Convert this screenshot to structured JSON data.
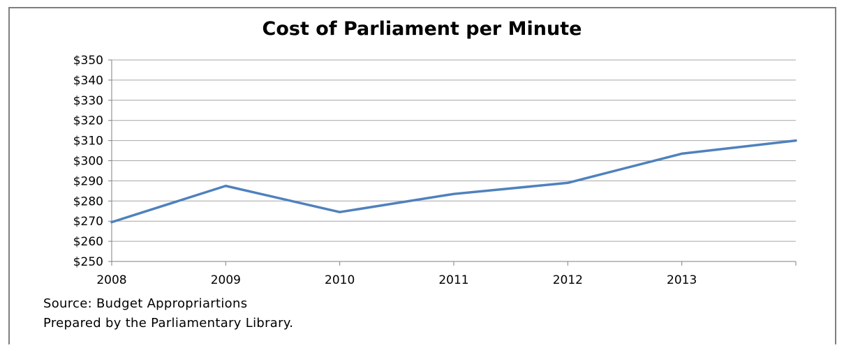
{
  "chart_data": {
    "type": "line",
    "title": "Cost of Parliament per Minute",
    "xlabel": "",
    "ylabel": "",
    "y_tick_labels": [
      "$350",
      "$340",
      "$330",
      "$320",
      "$310",
      "$300",
      "$290",
      "$280",
      "$270",
      "$260",
      "$250"
    ],
    "x_tick_labels": [
      "2008",
      "2009",
      "2010",
      "2011",
      "2012",
      "2013"
    ],
    "ylim": [
      250,
      350
    ],
    "grid": true,
    "series": [
      {
        "values": [
          269.5,
          287.5,
          274.5,
          283.5,
          289,
          303.5,
          310
        ],
        "color": "#4f81bd"
      }
    ],
    "notes": [
      "Source: Budget Appropriartions",
      "Prepared by the Parliamentary Library."
    ]
  }
}
